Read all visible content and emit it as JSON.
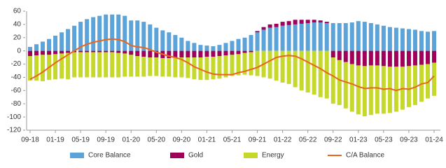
{
  "chart_data": {
    "type": "bar",
    "categories": [
      "09-18",
      null,
      null,
      null,
      "01-19",
      null,
      null,
      null,
      "05-19",
      null,
      null,
      null,
      "09-19",
      null,
      null,
      null,
      "01-20",
      null,
      null,
      null,
      "05-20",
      null,
      null,
      null,
      "09-20",
      null,
      null,
      null,
      "01-21",
      null,
      null,
      null,
      "05-21",
      null,
      null,
      null,
      "09-21",
      null,
      null,
      null,
      "01-22",
      null,
      null,
      null,
      "05-22",
      null,
      null,
      null,
      "09-22",
      null,
      null,
      null,
      "01-23",
      null,
      null,
      null,
      "05-23",
      null,
      null,
      null,
      "09-23",
      null,
      null,
      null,
      "01-24"
    ],
    "series": [
      {
        "name": "Core Balance",
        "color": "#5ba3d9",
        "values": [
          6,
          10,
          14,
          18,
          23,
          28,
          33,
          38,
          44,
          48,
          51,
          53,
          55,
          55,
          55,
          53,
          46,
          46,
          44,
          40,
          35,
          31,
          28,
          24,
          20,
          15,
          12,
          9,
          8,
          7,
          9,
          12,
          15,
          18,
          20,
          24,
          28,
          32,
          35,
          36,
          38,
          39,
          40,
          41,
          42,
          43,
          43,
          42,
          42,
          42,
          42,
          43,
          45,
          44,
          42,
          40,
          38,
          36,
          35,
          34,
          33,
          32,
          30,
          29,
          30
        ]
      },
      {
        "name": "Gold",
        "color": "#a0005a",
        "values": [
          -8,
          -7,
          -6,
          -6,
          -5,
          -4,
          -3,
          -2,
          -2,
          -2,
          -2,
          -2,
          -2,
          -2,
          -3,
          -4,
          -6,
          -8,
          -9,
          -10,
          -10,
          -11,
          -11,
          -10,
          -10,
          -10,
          -10,
          -10,
          -9,
          -9,
          -8,
          -7,
          -6,
          -5,
          -3,
          -2,
          2,
          4,
          5,
          5,
          6,
          6,
          7,
          6,
          5,
          4,
          3,
          2,
          -10,
          -14,
          -17,
          -20,
          -22,
          -23,
          -22,
          -22,
          -23,
          -24,
          -24,
          -24,
          -23,
          -22,
          -21,
          -20,
          -18
        ]
      },
      {
        "name": "Energy",
        "color": "#c5d82b",
        "values": [
          -37,
          -38,
          -40,
          -38,
          -38,
          -38,
          -40,
          -38,
          -38,
          -38,
          -38,
          -38,
          -38,
          -38,
          -37,
          -35,
          -33,
          -31,
          -30,
          -28,
          -28,
          -28,
          -28,
          -30,
          -30,
          -31,
          -33,
          -34,
          -35,
          -34,
          -34,
          -33,
          -32,
          -32,
          -33,
          -35,
          -38,
          -40,
          -42,
          -45,
          -48,
          -50,
          -55,
          -60,
          -63,
          -66,
          -70,
          -72,
          -70,
          -68,
          -70,
          -72,
          -74,
          -76,
          -75,
          -73,
          -72,
          -70,
          -68,
          -65,
          -62,
          -60,
          -56,
          -52,
          -50
        ]
      },
      {
        "name": "C/A Balance",
        "color": "#e8661e",
        "type": "line",
        "values": [
          -43,
          -38,
          -32,
          -25,
          -18,
          -12,
          -6,
          0,
          6,
          10,
          13,
          15,
          17,
          18,
          17,
          14,
          8,
          6,
          5,
          2,
          -2,
          -5,
          -8,
          -10,
          -13,
          -18,
          -24,
          -28,
          -32,
          -35,
          -36,
          -36,
          -36,
          -33,
          -31,
          -28,
          -25,
          -20,
          -15,
          -10,
          -8,
          -7,
          -8,
          -12,
          -17,
          -22,
          -27,
          -33,
          -38,
          -44,
          -47,
          -50,
          -54,
          -57,
          -56,
          -56,
          -58,
          -57,
          -60,
          -57,
          -58,
          -55,
          -50,
          -48,
          -38
        ]
      }
    ],
    "ylim": [
      -120,
      60
    ],
    "yticks": [
      -120,
      -100,
      -80,
      -60,
      -40,
      -20,
      0,
      20,
      40,
      60
    ]
  }
}
